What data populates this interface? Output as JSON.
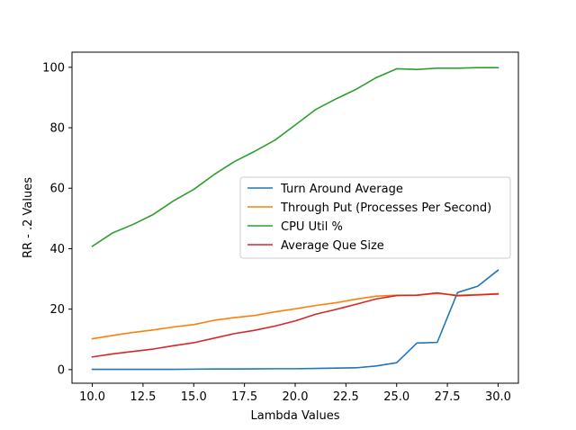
{
  "chart_data": {
    "type": "line",
    "xlabel": "Lambda Values",
    "ylabel": "RR - .2 Values",
    "xlim": [
      9.0,
      31.0
    ],
    "ylim": [
      -4.5,
      105.0
    ],
    "x_ticks": [
      10.0,
      12.5,
      15.0,
      17.5,
      20.0,
      22.5,
      25.0,
      27.5,
      30.0
    ],
    "x_tick_labels": [
      "10.0",
      "12.5",
      "15.0",
      "17.5",
      "20.0",
      "22.5",
      "25.0",
      "27.5",
      "30.0"
    ],
    "y_ticks": [
      0,
      20,
      40,
      60,
      80,
      100
    ],
    "y_tick_labels": [
      "0",
      "20",
      "40",
      "60",
      "80",
      "100"
    ],
    "grid": false,
    "legend_position": "center-right",
    "x": [
      10,
      11,
      12,
      13,
      14,
      15,
      16,
      17,
      18,
      19,
      20,
      21,
      22,
      23,
      24,
      25,
      26,
      27,
      28,
      29,
      30
    ],
    "series": [
      {
        "name": "Turn Around Average",
        "color": "#1f77b4",
        "values": [
          0.1,
          0.1,
          0.1,
          0.1,
          0.1,
          0.15,
          0.2,
          0.2,
          0.25,
          0.3,
          0.3,
          0.4,
          0.5,
          0.6,
          1.2,
          2.3,
          8.8,
          9.0,
          25.5,
          27.6,
          32.9
        ]
      },
      {
        "name": "Through Put (Processes Per Second)",
        "color": "#ff7f0e",
        "values": [
          10.2,
          11.3,
          12.3,
          13.1,
          14.1,
          14.9,
          16.3,
          17.2,
          17.9,
          19.1,
          20.1,
          21.2,
          22.1,
          23.3,
          24.3,
          24.6,
          24.6,
          25.2,
          24.6,
          24.8,
          25.1
        ]
      },
      {
        "name": "CPU Util %",
        "color": "#2ca02c",
        "values": [
          40.8,
          45.2,
          48.0,
          51.3,
          55.8,
          59.6,
          64.5,
          68.8,
          72.2,
          75.9,
          80.9,
          86.0,
          89.5,
          92.7,
          96.6,
          99.5,
          99.3,
          99.7,
          99.7,
          99.9,
          99.9
        ]
      },
      {
        "name": "Average Que Size",
        "color": "#d62728",
        "values": [
          4.2,
          5.2,
          6.0,
          6.8,
          7.9,
          8.9,
          10.4,
          11.9,
          13.0,
          14.4,
          16.1,
          18.3,
          19.9,
          21.6,
          23.4,
          24.5,
          24.6,
          25.4,
          24.4,
          24.7,
          25.0
        ]
      }
    ]
  }
}
